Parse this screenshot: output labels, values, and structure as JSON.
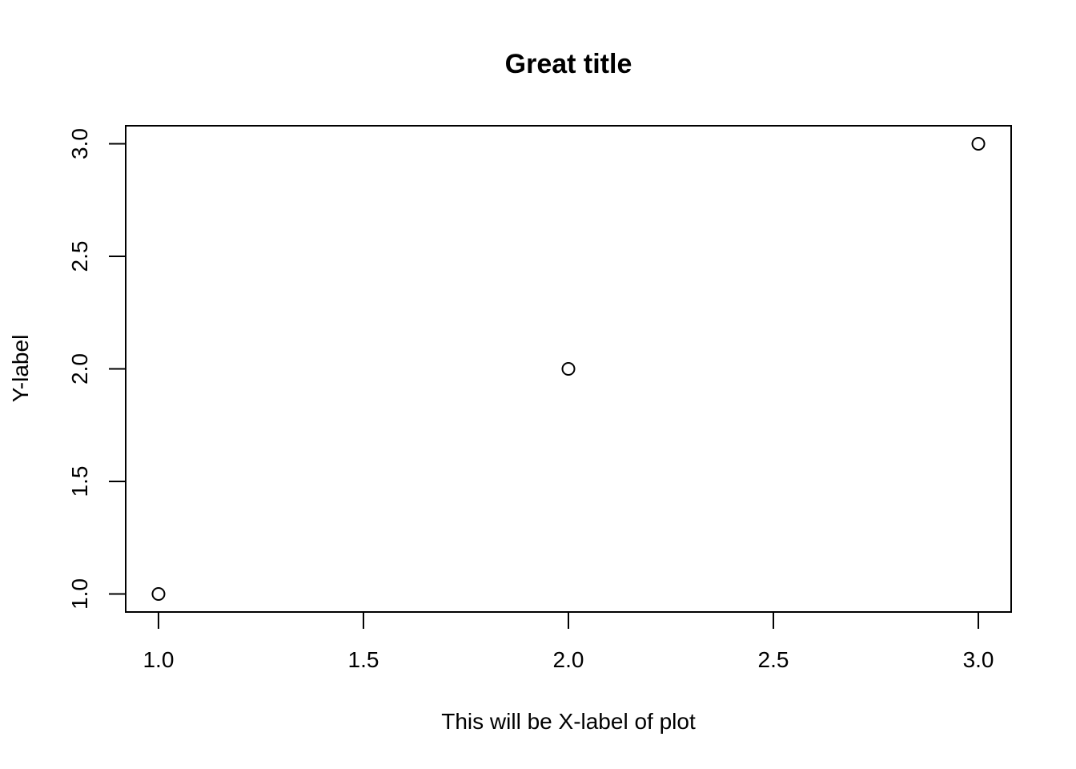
{
  "chart_data": {
    "type": "scatter",
    "title": "Great title",
    "xlabel": "This will be X-label of plot",
    "ylabel": "Y-label",
    "x": [
      1,
      2,
      3
    ],
    "y": [
      1,
      2,
      3
    ],
    "xlim": [
      0.92,
      3.08
    ],
    "ylim": [
      0.92,
      3.08
    ],
    "x_ticks": [
      1.0,
      1.5,
      2.0,
      2.5,
      3.0
    ],
    "x_tick_labels": [
      "1.0",
      "1.5",
      "2.0",
      "2.5",
      "3.0"
    ],
    "y_ticks": [
      1.0,
      1.5,
      2.0,
      2.5,
      3.0
    ],
    "y_tick_labels": [
      "1.0",
      "1.5",
      "2.0",
      "2.5",
      "3.0"
    ],
    "grid": false,
    "legend": "none",
    "marker": "open-circle",
    "colors": {
      "ink": "#000000",
      "background": "#ffffff"
    }
  }
}
